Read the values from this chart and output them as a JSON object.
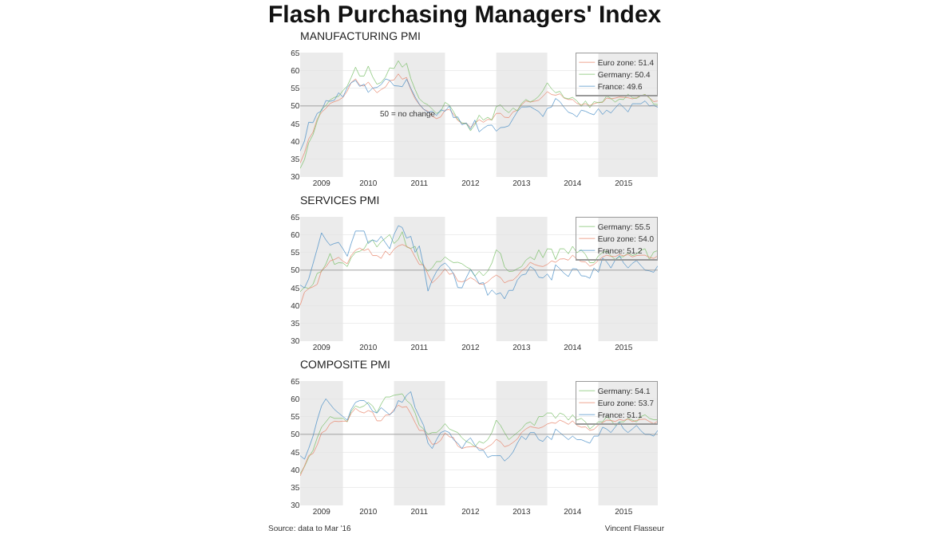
{
  "chart_data": [
    {
      "type": "line",
      "title": "Flash Purchasing Managers' Index",
      "subtitle": "MANUFACTURING PMI",
      "x": [
        "2009-03",
        "2009-04",
        "2009-05",
        "2009-06",
        "2009-07",
        "2009-08",
        "2009-09",
        "2009-10",
        "2009-11",
        "2009-12",
        "2010-01",
        "2010-02",
        "2010-03",
        "2010-04",
        "2010-05",
        "2010-06",
        "2010-07",
        "2010-08",
        "2010-09",
        "2010-10",
        "2010-11",
        "2010-12",
        "2011-01",
        "2011-02",
        "2011-03",
        "2011-04",
        "2011-05",
        "2011-06",
        "2011-07",
        "2011-08",
        "2011-09",
        "2011-10",
        "2011-11",
        "2011-12",
        "2012-01",
        "2012-02",
        "2012-03",
        "2012-04",
        "2012-05",
        "2012-06",
        "2012-07",
        "2012-08",
        "2012-09",
        "2012-10",
        "2012-11",
        "2012-12",
        "2013-01",
        "2013-02",
        "2013-03",
        "2013-04",
        "2013-05",
        "2013-06",
        "2013-07",
        "2013-08",
        "2013-09",
        "2013-10",
        "2013-11",
        "2013-12",
        "2014-01",
        "2014-02",
        "2014-03",
        "2014-04",
        "2014-05",
        "2014-06",
        "2014-07",
        "2014-08",
        "2014-09",
        "2014-10",
        "2014-11",
        "2014-12",
        "2015-01",
        "2015-02",
        "2015-03",
        "2015-04",
        "2015-05",
        "2015-06",
        "2015-07",
        "2015-08",
        "2015-09",
        "2015-10",
        "2015-11",
        "2015-12",
        "2016-01",
        "2016-02",
        "2016-03"
      ],
      "series": [
        {
          "name": "Euro zone: 51.4",
          "color": "#e8846a",
          "values": [
            33.9,
            36.8,
            40.7,
            42.6,
            46.3,
            48.2,
            49.3,
            50.7,
            51.2,
            51.6,
            52.4,
            54.2,
            56.6,
            57.6,
            55.8,
            55.6,
            56.7,
            55.1,
            53.7,
            54.6,
            55.3,
            57.1,
            57.3,
            59.0,
            57.5,
            58.0,
            54.6,
            52.0,
            50.4,
            49.0,
            48.5,
            47.1,
            46.4,
            46.9,
            48.8,
            49.0,
            47.7,
            45.9,
            45.1,
            45.1,
            44.0,
            45.1,
            46.1,
            45.4,
            46.2,
            46.1,
            47.9,
            47.9,
            46.8,
            46.7,
            48.3,
            48.8,
            50.3,
            51.4,
            51.1,
            51.3,
            51.6,
            52.7,
            54.0,
            53.2,
            53.0,
            53.4,
            52.2,
            51.8,
            51.8,
            50.7,
            50.3,
            50.6,
            50.1,
            50.6,
            51.0,
            51.0,
            52.2,
            52.0,
            52.2,
            52.5,
            52.4,
            52.3,
            52.0,
            52.3,
            52.8,
            53.2,
            52.3,
            51.2,
            51.4
          ]
        },
        {
          "name": "Germany: 50.4",
          "color": "#7cc06a",
          "values": [
            32.4,
            34.9,
            39.6,
            41.9,
            45.7,
            49.1,
            50.1,
            51.7,
            52.4,
            52.7,
            54.3,
            55.6,
            58.0,
            60.9,
            58.4,
            58.4,
            61.2,
            58.2,
            56.1,
            56.6,
            58.1,
            60.7,
            60.5,
            62.7,
            60.9,
            62.0,
            57.7,
            54.6,
            52.0,
            50.9,
            50.3,
            49.1,
            47.9,
            48.4,
            51.0,
            50.2,
            48.4,
            46.2,
            45.2,
            45.0,
            43.0,
            44.7,
            47.4,
            46.0,
            46.8,
            46.0,
            49.8,
            50.3,
            49.0,
            48.1,
            49.4,
            48.6,
            50.7,
            51.8,
            51.1,
            51.7,
            52.7,
            54.3,
            56.5,
            54.8,
            53.7,
            54.1,
            52.3,
            52.0,
            52.4,
            51.4,
            49.9,
            51.4,
            49.5,
            51.2,
            50.9,
            51.1,
            52.8,
            52.1,
            51.1,
            51.9,
            51.8,
            53.3,
            52.3,
            52.1,
            52.9,
            53.2,
            52.3,
            50.5,
            50.4
          ]
        },
        {
          "name": "France: 49.6",
          "color": "#4a8fc7",
          "values": [
            37.3,
            40.1,
            45.4,
            45.3,
            47.9,
            48.6,
            51.5,
            51.3,
            51.6,
            53.7,
            52.5,
            55.2,
            56.5,
            57.2,
            55.5,
            56.1,
            53.8,
            55.0,
            55.2,
            56.0,
            57.6,
            57.2,
            55.7,
            55.6,
            55.4,
            57.5,
            55.0,
            52.5,
            50.5,
            49.1,
            48.2,
            48.5,
            47.3,
            48.9,
            48.5,
            50.0,
            46.7,
            46.9,
            44.7,
            45.2,
            43.4,
            46.0,
            42.7,
            43.7,
            44.5,
            44.6,
            42.9,
            43.9,
            44.0,
            44.4,
            46.4,
            48.4,
            49.7,
            49.7,
            49.8,
            49.1,
            48.4,
            47.0,
            49.3,
            49.7,
            52.1,
            51.2,
            49.6,
            48.2,
            47.8,
            46.9,
            48.8,
            48.5,
            47.9,
            47.5,
            49.2,
            47.6,
            48.8,
            48.0,
            49.4,
            50.7,
            49.6,
            48.3,
            50.6,
            50.6,
            50.6,
            51.4,
            50.0,
            50.2,
            49.6
          ]
        }
      ],
      "xlim": [
        "2009-03",
        "2016-03"
      ],
      "xticks": [
        {
          "value": "2009-08-01",
          "label": "2009"
        },
        {
          "value": "2010-07-01",
          "label": "2010"
        },
        {
          "value": "2011-07-01",
          "label": "2011"
        },
        {
          "value": "2012-07-01",
          "label": "2012"
        },
        {
          "value": "2013-07-01",
          "label": "2013"
        },
        {
          "value": "2014-07-01",
          "label": "2014"
        },
        {
          "value": "2015-07-01",
          "label": "2015"
        }
      ],
      "ylim": [
        30,
        65
      ],
      "yticks": [
        30,
        35,
        40,
        45,
        50,
        55,
        60,
        65
      ],
      "grid": "y",
      "legend": "top right",
      "line_style": "solid",
      "ref_lines": [
        {
          "axis": "y",
          "value": 50,
          "label": "50 = no change",
          "color": "#808080"
        }
      ],
      "bands": [
        {
          "axis": "x",
          "from": "2009-03",
          "to": "2010-01",
          "color": "#ebebeb"
        },
        {
          "axis": "x",
          "from": "2011-01",
          "to": "2012-01",
          "color": "#ebebeb"
        },
        {
          "axis": "x",
          "from": "2013-01",
          "to": "2014-01",
          "color": "#ebebeb"
        },
        {
          "axis": "x",
          "from": "2015-01",
          "to": "2016-03",
          "color": "#ebebeb"
        }
      ]
    },
    {
      "type": "line",
      "subtitle": "SERVICES PMI",
      "x": [
        "2009-03",
        "2009-04",
        "2009-05",
        "2009-06",
        "2009-07",
        "2009-08",
        "2009-09",
        "2009-10",
        "2009-11",
        "2009-12",
        "2010-01",
        "2010-02",
        "2010-03",
        "2010-04",
        "2010-05",
        "2010-06",
        "2010-07",
        "2010-08",
        "2010-09",
        "2010-10",
        "2010-11",
        "2010-12",
        "2011-01",
        "2011-02",
        "2011-03",
        "2011-04",
        "2011-05",
        "2011-06",
        "2011-07",
        "2011-08",
        "2011-09",
        "2011-10",
        "2011-11",
        "2011-12",
        "2012-01",
        "2012-02",
        "2012-03",
        "2012-04",
        "2012-05",
        "2012-06",
        "2012-07",
        "2012-08",
        "2012-09",
        "2012-10",
        "2012-11",
        "2012-12",
        "2013-01",
        "2013-02",
        "2013-03",
        "2013-04",
        "2013-05",
        "2013-06",
        "2013-07",
        "2013-08",
        "2013-09",
        "2013-10",
        "2013-11",
        "2013-12",
        "2014-01",
        "2014-02",
        "2014-03",
        "2014-04",
        "2014-05",
        "2014-06",
        "2014-07",
        "2014-08",
        "2014-09",
        "2014-10",
        "2014-11",
        "2014-12",
        "2015-01",
        "2015-02",
        "2015-03",
        "2015-04",
        "2015-05",
        "2015-06",
        "2015-07",
        "2015-08",
        "2015-09",
        "2015-10",
        "2015-11",
        "2015-12",
        "2016-01",
        "2016-02",
        "2016-03"
      ],
      "series": [
        {
          "name": "Germany: 55.5",
          "color": "#7cc06a",
          "values": [
            43.9,
            45.2,
            44.8,
            46.0,
            49.1,
            49.6,
            51.7,
            54.7,
            51.6,
            52.1,
            52.0,
            51.0,
            53.5,
            55.0,
            55.3,
            56.0,
            58.0,
            58.5,
            56.5,
            58.0,
            59.0,
            60.0,
            57.5,
            58.6,
            60.8,
            56.5,
            56.1,
            56.7,
            52.9,
            51.1,
            49.7,
            50.6,
            52.4,
            52.4,
            53.7,
            52.8,
            52.1,
            52.2,
            51.8,
            50.9,
            50.3,
            48.3,
            49.7,
            48.4,
            49.7,
            52.0,
            55.7,
            54.7,
            50.9,
            49.6,
            49.7,
            50.4,
            51.0,
            52.8,
            53.7,
            52.9,
            55.7,
            53.5,
            56.0,
            55.9,
            53.0,
            56.0,
            56.0,
            54.6,
            56.7,
            54.9,
            55.7,
            54.4,
            52.1,
            52.1,
            54.0,
            55.0,
            55.4,
            54.0,
            53.0,
            53.7,
            53.8,
            54.9,
            54.1,
            54.5,
            55.6,
            56.0,
            53.0,
            55.1,
            55.5
          ]
        },
        {
          "name": "Euro zone: 54.0",
          "color": "#e8846a",
          "values": [
            40.1,
            43.8,
            44.8,
            45.3,
            46.0,
            49.9,
            50.9,
            52.6,
            53.0,
            53.6,
            52.5,
            51.8,
            54.1,
            55.6,
            56.2,
            55.5,
            56.0,
            54.1,
            54.1,
            53.3,
            55.4,
            54.2,
            55.9,
            56.8,
            57.2,
            56.7,
            56.0,
            53.7,
            51.6,
            51.5,
            48.8,
            46.4,
            47.5,
            48.8,
            50.4,
            48.8,
            49.2,
            46.9,
            46.7,
            47.1,
            47.9,
            47.2,
            46.1,
            46.0,
            46.7,
            47.8,
            48.6,
            47.9,
            46.4,
            47.0,
            47.2,
            48.3,
            49.8,
            50.7,
            52.2,
            51.6,
            51.2,
            51.0,
            51.6,
            52.6,
            52.2,
            53.1,
            53.2,
            52.8,
            54.2,
            53.1,
            52.4,
            52.3,
            51.1,
            51.6,
            52.7,
            53.7,
            54.2,
            53.9,
            53.8,
            54.4,
            54.0,
            54.4,
            53.7,
            54.1,
            54.2,
            54.2,
            53.6,
            53.3,
            54.0
          ]
        },
        {
          "name": "France: 51.2",
          "color": "#4a8fc7",
          "values": [
            45.8,
            45.0,
            47.5,
            51.8,
            56.0,
            60.5,
            58.5,
            57.0,
            57.5,
            57.8,
            56.0,
            53.9,
            57.5,
            61.0,
            61.0,
            61.0,
            57.5,
            58.5,
            58.0,
            59.5,
            57.7,
            56.0,
            60.0,
            62.5,
            62.0,
            59.0,
            59.5,
            55.0,
            56.8,
            51.1,
            44.1,
            47.2,
            49.6,
            51.2,
            52.0,
            50.7,
            49.0,
            45.1,
            45.0,
            47.9,
            50.2,
            48.4,
            46.2,
            46.5,
            42.9,
            44.4,
            43.2,
            43.6,
            41.9,
            44.3,
            44.3,
            47.2,
            48.6,
            48.9,
            51.0,
            50.2,
            48.0,
            47.8,
            48.9,
            47.2,
            51.5,
            50.4,
            49.1,
            48.2,
            50.4,
            50.3,
            48.4,
            48.3,
            47.7,
            50.6,
            49.4,
            53.4,
            52.4,
            50.6,
            52.8,
            54.1,
            52.0,
            50.6,
            51.9,
            52.7,
            51.3,
            50.0,
            49.8,
            49.4,
            51.2
          ]
        }
      ],
      "xlim": [
        "2009-03",
        "2016-03"
      ],
      "xticks": [
        {
          "value": "2009-08-01",
          "label": "2009"
        },
        {
          "value": "2010-07-01",
          "label": "2010"
        },
        {
          "value": "2011-07-01",
          "label": "2011"
        },
        {
          "value": "2012-07-01",
          "label": "2012"
        },
        {
          "value": "2013-07-01",
          "label": "2013"
        },
        {
          "value": "2014-07-01",
          "label": "2014"
        },
        {
          "value": "2015-07-01",
          "label": "2015"
        }
      ],
      "ylim": [
        30,
        65
      ],
      "yticks": [
        30,
        35,
        40,
        45,
        50,
        55,
        60,
        65
      ],
      "grid": "y",
      "legend": "top right",
      "line_style": "solid",
      "ref_lines": [
        {
          "axis": "y",
          "value": 50,
          "color": "#808080"
        }
      ],
      "bands": [
        {
          "axis": "x",
          "from": "2009-03",
          "to": "2010-01",
          "color": "#ebebeb"
        },
        {
          "axis": "x",
          "from": "2011-01",
          "to": "2012-01",
          "color": "#ebebeb"
        },
        {
          "axis": "x",
          "from": "2013-01",
          "to": "2014-01",
          "color": "#ebebeb"
        },
        {
          "axis": "x",
          "from": "2015-01",
          "to": "2016-03",
          "color": "#ebebeb"
        }
      ]
    },
    {
      "type": "line",
      "subtitle": "COMPOSITE PMI",
      "x": [
        "2009-03",
        "2009-04",
        "2009-05",
        "2009-06",
        "2009-07",
        "2009-08",
        "2009-09",
        "2009-10",
        "2009-11",
        "2009-12",
        "2010-01",
        "2010-02",
        "2010-03",
        "2010-04",
        "2010-05",
        "2010-06",
        "2010-07",
        "2010-08",
        "2010-09",
        "2010-10",
        "2010-11",
        "2010-12",
        "2011-01",
        "2011-02",
        "2011-03",
        "2011-04",
        "2011-05",
        "2011-06",
        "2011-07",
        "2011-08",
        "2011-09",
        "2011-10",
        "2011-11",
        "2011-12",
        "2012-01",
        "2012-02",
        "2012-03",
        "2012-04",
        "2012-05",
        "2012-06",
        "2012-07",
        "2012-08",
        "2012-09",
        "2012-10",
        "2012-11",
        "2012-12",
        "2013-01",
        "2013-02",
        "2013-03",
        "2013-04",
        "2013-05",
        "2013-06",
        "2013-07",
        "2013-08",
        "2013-09",
        "2013-10",
        "2013-11",
        "2013-12",
        "2014-01",
        "2014-02",
        "2014-03",
        "2014-04",
        "2014-05",
        "2014-06",
        "2014-07",
        "2014-08",
        "2014-09",
        "2014-10",
        "2014-11",
        "2014-12",
        "2015-01",
        "2015-02",
        "2015-03",
        "2015-04",
        "2015-05",
        "2015-06",
        "2015-07",
        "2015-08",
        "2015-09",
        "2015-10",
        "2015-11",
        "2015-12",
        "2016-01",
        "2016-02",
        "2016-03"
      ],
      "series": [
        {
          "name": "Germany: 54.1",
          "color": "#7cc06a",
          "values": [
            38.9,
            40.9,
            43.5,
            45.5,
            49.0,
            52.0,
            53.5,
            55.0,
            54.5,
            54.5,
            54.5,
            53.5,
            56.5,
            58.0,
            57.5,
            58.0,
            59.0,
            58.0,
            56.0,
            58.5,
            60.5,
            60.5,
            61.0,
            61.2,
            61.4,
            59.5,
            58.5,
            56.0,
            52.5,
            51.5,
            50.0,
            50.5,
            50.5,
            51.5,
            53.0,
            51.5,
            51.0,
            50.5,
            49.0,
            48.0,
            47.5,
            46.5,
            48.0,
            47.5,
            48.5,
            50.5,
            54.0,
            52.5,
            50.5,
            48.5,
            49.5,
            50.5,
            51.5,
            53.0,
            53.5,
            52.5,
            55.0,
            55.0,
            56.0,
            56.0,
            54.5,
            56.0,
            55.5,
            54.0,
            55.5,
            54.0,
            54.5,
            53.5,
            51.5,
            52.5,
            53.5,
            53.5,
            55.0,
            54.0,
            52.5,
            53.5,
            53.5,
            54.5,
            54.0,
            53.5,
            55.0,
            55.5,
            54.5,
            54.1,
            54.1
          ]
        },
        {
          "name": "Euro zone: 53.7",
          "color": "#e8846a",
          "values": [
            38.3,
            41.1,
            44.0,
            44.6,
            47.0,
            50.4,
            51.1,
            53.0,
            53.7,
            53.6,
            53.7,
            53.7,
            55.9,
            57.3,
            56.4,
            56.0,
            56.7,
            56.2,
            53.8,
            53.8,
            55.4,
            55.5,
            57.0,
            58.2,
            57.6,
            57.8,
            55.8,
            53.3,
            51.1,
            51.1,
            49.1,
            47.2,
            47.4,
            48.3,
            50.4,
            49.3,
            49.1,
            46.7,
            46.0,
            46.4,
            46.5,
            46.6,
            46.1,
            45.7,
            46.5,
            47.2,
            48.6,
            47.9,
            46.5,
            46.9,
            47.7,
            48.7,
            50.5,
            51.5,
            52.2,
            51.9,
            51.7,
            52.1,
            52.9,
            53.3,
            53.1,
            54.0,
            53.5,
            52.8,
            53.8,
            52.5,
            52.0,
            52.1,
            51.1,
            51.4,
            52.6,
            53.3,
            54.0,
            53.9,
            53.6,
            54.2,
            53.9,
            54.3,
            53.6,
            53.9,
            54.2,
            54.3,
            53.6,
            53.0,
            53.7
          ]
        },
        {
          "name": "France: 51.1",
          "color": "#4a8fc7",
          "values": [
            44.0,
            43.0,
            46.0,
            49.5,
            54.0,
            58.0,
            60.0,
            58.5,
            57.0,
            56.0,
            55.0,
            54.0,
            57.0,
            59.0,
            59.5,
            59.5,
            58.5,
            56.5,
            56.0,
            57.5,
            56.5,
            55.5,
            56.5,
            59.5,
            59.0,
            61.0,
            62.0,
            57.5,
            55.0,
            52.5,
            47.5,
            46.0,
            48.5,
            50.5,
            51.0,
            50.5,
            48.5,
            47.5,
            46.0,
            48.0,
            49.0,
            47.0,
            45.5,
            45.5,
            43.5,
            44.0,
            44.0,
            44.0,
            42.5,
            43.5,
            45.0,
            47.5,
            49.5,
            48.5,
            50.5,
            50.5,
            48.5,
            48.0,
            49.5,
            48.5,
            51.5,
            50.5,
            49.5,
            48.5,
            49.5,
            48.5,
            48.5,
            48.0,
            47.5,
            49.5,
            49.5,
            52.0,
            51.5,
            50.5,
            52.0,
            53.5,
            51.5,
            50.5,
            51.5,
            52.5,
            51.0,
            50.0,
            50.0,
            49.5,
            51.1
          ]
        }
      ],
      "xlim": [
        "2009-03",
        "2016-03"
      ],
      "xticks": [
        {
          "value": "2009-08-01",
          "label": "2009"
        },
        {
          "value": "2010-07-01",
          "label": "2010"
        },
        {
          "value": "2011-07-01",
          "label": "2011"
        },
        {
          "value": "2012-07-01",
          "label": "2012"
        },
        {
          "value": "2013-07-01",
          "label": "2013"
        },
        {
          "value": "2014-07-01",
          "label": "2014"
        },
        {
          "value": "2015-07-01",
          "label": "2015"
        }
      ],
      "ylim": [
        30,
        65
      ],
      "yticks": [
        30,
        35,
        40,
        45,
        50,
        55,
        60,
        65
      ],
      "grid": "y",
      "legend": "top right",
      "line_style": "solid",
      "ref_lines": [
        {
          "axis": "y",
          "value": 50,
          "color": "#808080"
        }
      ],
      "bands": [
        {
          "axis": "x",
          "from": "2009-03",
          "to": "2010-01",
          "color": "#ebebeb"
        },
        {
          "axis": "x",
          "from": "2011-01",
          "to": "2012-01",
          "color": "#ebebeb"
        },
        {
          "axis": "x",
          "from": "2013-01",
          "to": "2014-01",
          "color": "#ebebeb"
        },
        {
          "axis": "x",
          "from": "2015-01",
          "to": "2016-03",
          "color": "#ebebeb"
        }
      ],
      "annotations": [
        "Source: data to Mar '16",
        "Vincent Flasseur"
      ]
    }
  ]
}
